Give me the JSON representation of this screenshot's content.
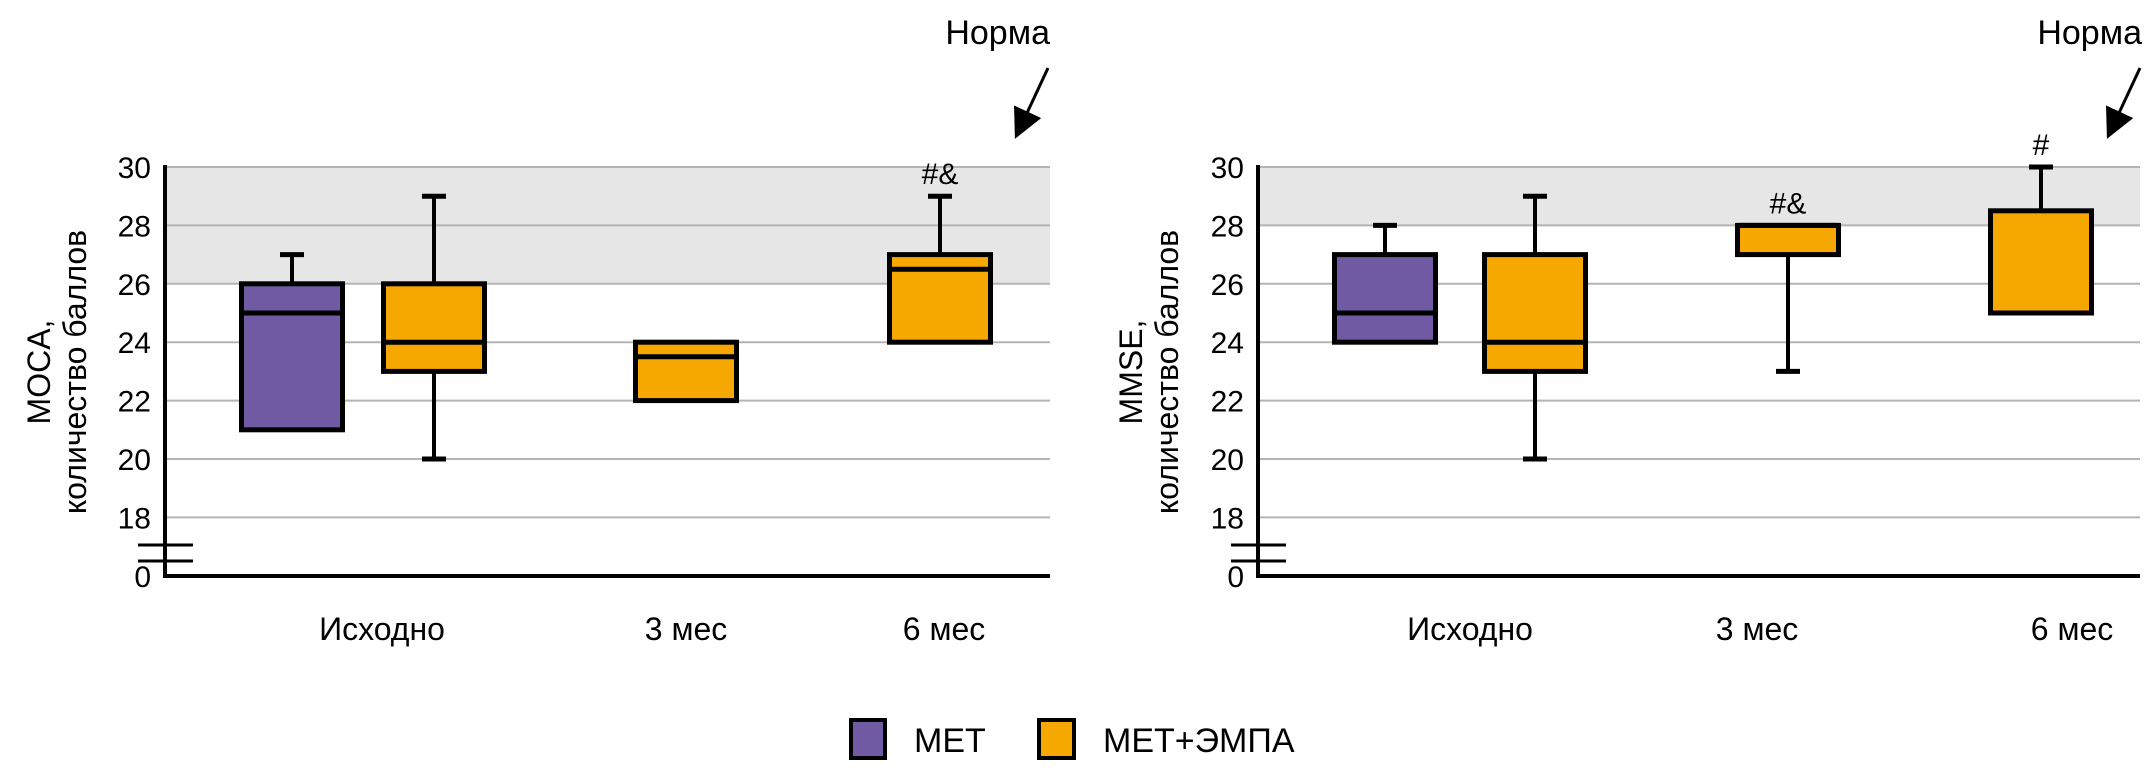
{
  "chart_data": [
    {
      "type": "box",
      "id": "moca",
      "title": "",
      "ylabel_line1": "MOCA,",
      "ylabel_line2": "количество баллов",
      "xlabel": "",
      "categories": [
        "Исходно",
        "3 мес",
        "6 мес"
      ],
      "yticks": [
        0,
        18,
        20,
        22,
        24,
        26,
        28,
        30
      ],
      "ylim": [
        17,
        30
      ],
      "axis_break": true,
      "norm_band": [
        26,
        30
      ],
      "norm_label": "Норма",
      "grid": true,
      "series": [
        {
          "name": "МЕТ",
          "boxes": [
            {
              "category": "Исходно",
              "min": 21,
              "q1": 21,
              "median": 25,
              "q3": 26,
              "max": 27
            },
            null,
            null
          ]
        },
        {
          "name": "МЕТ+ЭМПА",
          "boxes": [
            {
              "category": "Исходно",
              "min": 20,
              "q1": 23,
              "median": 24,
              "q3": 26,
              "max": 29
            },
            {
              "category": "3 мес",
              "min": 22,
              "q1": 22,
              "median": 23.5,
              "q3": 24,
              "max": 24
            },
            {
              "category": "6 мес",
              "min": 24,
              "q1": 24,
              "median": 26.5,
              "q3": 27,
              "max": 29,
              "annotation": "#&"
            }
          ]
        }
      ]
    },
    {
      "type": "box",
      "id": "mmse",
      "title": "",
      "ylabel_line1": "MMSE,",
      "ylabel_line2": "количество баллов",
      "xlabel": "",
      "categories": [
        "Исходно",
        "3 мес",
        "6 мес"
      ],
      "yticks": [
        0,
        18,
        20,
        22,
        24,
        26,
        28,
        30
      ],
      "ylim": [
        17,
        30
      ],
      "axis_break": true,
      "norm_band": [
        28,
        30
      ],
      "norm_label": "Норма",
      "grid": true,
      "series": [
        {
          "name": "МЕТ",
          "boxes": [
            {
              "category": "Исходно",
              "min": 24,
              "q1": 24,
              "median": 25,
              "q3": 27,
              "max": 28
            },
            null,
            null
          ]
        },
        {
          "name": "МЕТ+ЭМПА",
          "boxes": [
            {
              "category": "Исходно",
              "min": 20,
              "q1": 23,
              "median": 24,
              "q3": 27,
              "max": 29
            },
            {
              "category": "3 мес",
              "min": 23,
              "q1": 27,
              "median": 28,
              "q3": 28,
              "max": 28,
              "annotation": "#&"
            },
            {
              "category": "6 мес",
              "min": 25,
              "q1": 25,
              "median": 25,
              "q3": 28.5,
              "max": 30,
              "annotation": "#"
            }
          ]
        }
      ]
    }
  ],
  "legend": {
    "position": "bottom-center",
    "items": [
      {
        "label": "МЕТ",
        "color": "#6f5aa3"
      },
      {
        "label": "МЕТ+ЭМПА",
        "color": "#f6a800"
      }
    ]
  },
  "colors": {
    "met": "#6f5aa3",
    "met_empa": "#f6a800",
    "norm_band": "#e6e6e6",
    "grid": "#b4b4b4"
  }
}
